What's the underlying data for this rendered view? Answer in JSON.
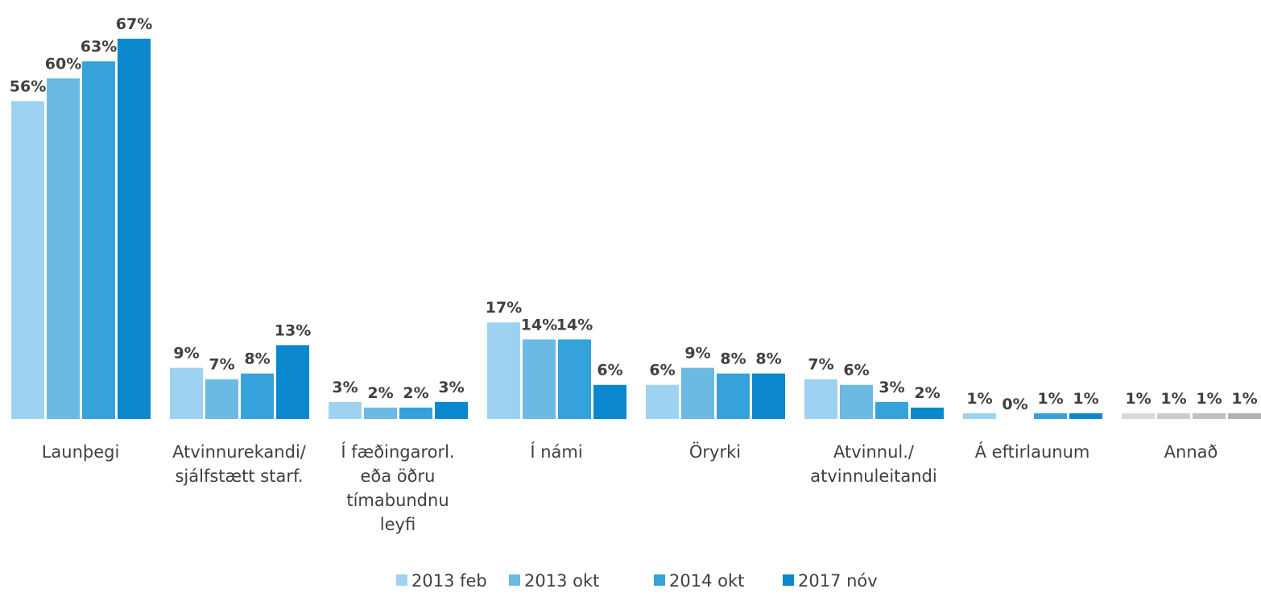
{
  "chart_data": {
    "type": "bar",
    "categories": [
      "Launþegi",
      "Atvinnurekandi/\nsjálfstætt starf.",
      "Í fæðingarorl.\neða öðru\ntímabundnu\nleyfi",
      "Í námi",
      "Öryrki",
      "Atvinnul./\natvinnuleitandi",
      "Á eftirlaunum",
      "Annað"
    ],
    "series": [
      {
        "name": "2013 feb",
        "color": "#9dd3f0",
        "colors": [
          "#9dd3f0",
          "#9dd3f0",
          "#9dd3f0",
          "#9dd3f0",
          "#9dd3f0",
          "#9dd3f0",
          "#9dd3f0",
          "#d9d9d9"
        ],
        "values": [
          56,
          9,
          3,
          17,
          6,
          7,
          1,
          1
        ],
        "value_labels": [
          "56%",
          "9%",
          "3%",
          "17%",
          "6%",
          "7%",
          "1%",
          "1%"
        ]
      },
      {
        "name": "2013 okt",
        "color": "#6cb9e4",
        "colors": [
          "#6cb9e4",
          "#6cb9e4",
          "#6cb9e4",
          "#6cb9e4",
          "#6cb9e4",
          "#6cb9e4",
          "#6cb9e4",
          "#cccccc"
        ],
        "values": [
          60,
          7,
          2,
          14,
          9,
          6,
          0,
          1
        ],
        "value_labels": [
          "60%",
          "7%",
          "2%",
          "14%",
          "9%",
          "6%",
          "0%",
          "1%"
        ]
      },
      {
        "name": "2014 okt",
        "color": "#36a2dc",
        "colors": [
          "#36a2dc",
          "#36a2dc",
          "#36a2dc",
          "#36a2dc",
          "#36a2dc",
          "#36a2dc",
          "#36a2dc",
          "#bfbfbf"
        ],
        "values": [
          63,
          8,
          2,
          14,
          8,
          3,
          1,
          1
        ],
        "value_labels": [
          "63%",
          "8%",
          "2%",
          "14%",
          "8%",
          "3%",
          "1%",
          "1%"
        ]
      },
      {
        "name": "2017 nóv",
        "color": "#0a87cd",
        "colors": [
          "#0a87cd",
          "#0a87cd",
          "#0a87cd",
          "#0a87cd",
          "#0a87cd",
          "#0a87cd",
          "#0a87cd",
          "#b2b2b2"
        ],
        "values": [
          67,
          13,
          3,
          6,
          8,
          2,
          1,
          1
        ],
        "value_labels": [
          "67%",
          "13%",
          "3%",
          "6%",
          "8%",
          "2%",
          "1%",
          "1%"
        ]
      }
    ]
  }
}
